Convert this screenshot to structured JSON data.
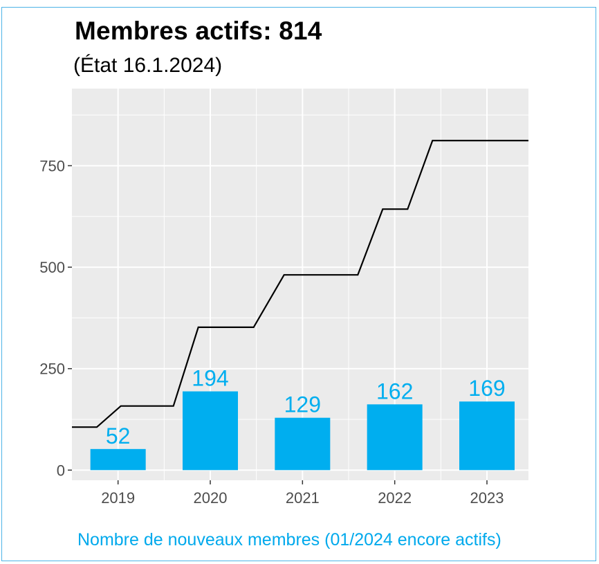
{
  "title": "Membres actifs: 814",
  "subtitle": "(État 16.1.2024)",
  "caption": "Nombre de nouveaux membres (01/2024 encore actifs)",
  "colors": {
    "bar": "#00aeef",
    "bar_label": "#00aeef",
    "line": "#000000",
    "panel": "#ebebeb",
    "grid": "#ffffff",
    "axis_text": "#4d4d4d",
    "border": "#4cb3e6"
  },
  "chart_data": {
    "type": "bar",
    "categories": [
      "2019",
      "2020",
      "2021",
      "2022",
      "2023"
    ],
    "values": [
      52,
      194,
      129,
      162,
      169
    ],
    "value_labels": [
      "52",
      "194",
      "129",
      "162",
      "169"
    ],
    "ylim": [
      -25,
      940
    ],
    "yticks": [
      0,
      250,
      500,
      750
    ],
    "ytick_labels": [
      "0",
      "250",
      "500",
      "750"
    ],
    "xlim": [
      2018.5,
      2023.45
    ],
    "grid": true,
    "legend": "none",
    "cumulative_line": {
      "type": "line",
      "x": [
        2018.5,
        2018.77,
        2019.03,
        2019.6,
        2019.87,
        2020.2,
        2020.47,
        2020.8,
        2021.14,
        2021.6,
        2021.87,
        2022.14,
        2022.41,
        2022.7,
        2023.45
      ],
      "y": [
        106,
        106,
        158,
        158,
        352,
        352,
        352,
        481,
        481,
        481,
        643,
        643,
        812,
        812,
        812
      ]
    }
  }
}
